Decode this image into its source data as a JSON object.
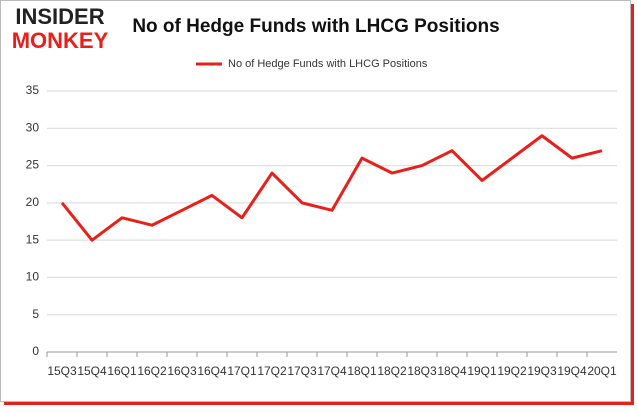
{
  "logo": {
    "line1": "INSIDER",
    "line2": "MONKEY"
  },
  "chart_data": {
    "type": "line",
    "title": "No of Hedge Funds with LHCG Positions",
    "categories": [
      "15Q3",
      "15Q4",
      "16Q1",
      "16Q2",
      "16Q3",
      "16Q4",
      "17Q1",
      "17Q2",
      "17Q3",
      "17Q4",
      "18Q1",
      "18Q2",
      "18Q3",
      "18Q4",
      "19Q1",
      "19Q2",
      "19Q3",
      "19Q4",
      "20Q1"
    ],
    "series": [
      {
        "name": "No of Hedge Funds with LHCG Positions",
        "color": "#e8201c",
        "values": [
          20,
          15,
          18,
          17,
          19,
          21,
          18,
          24,
          20,
          19,
          26,
          24,
          25,
          27,
          23,
          26,
          29,
          26,
          27
        ]
      }
    ],
    "ylim": [
      0,
      35
    ],
    "yticks": [
      0,
      5,
      10,
      15,
      20,
      25,
      30,
      35
    ],
    "grid": true,
    "legend": "top"
  }
}
